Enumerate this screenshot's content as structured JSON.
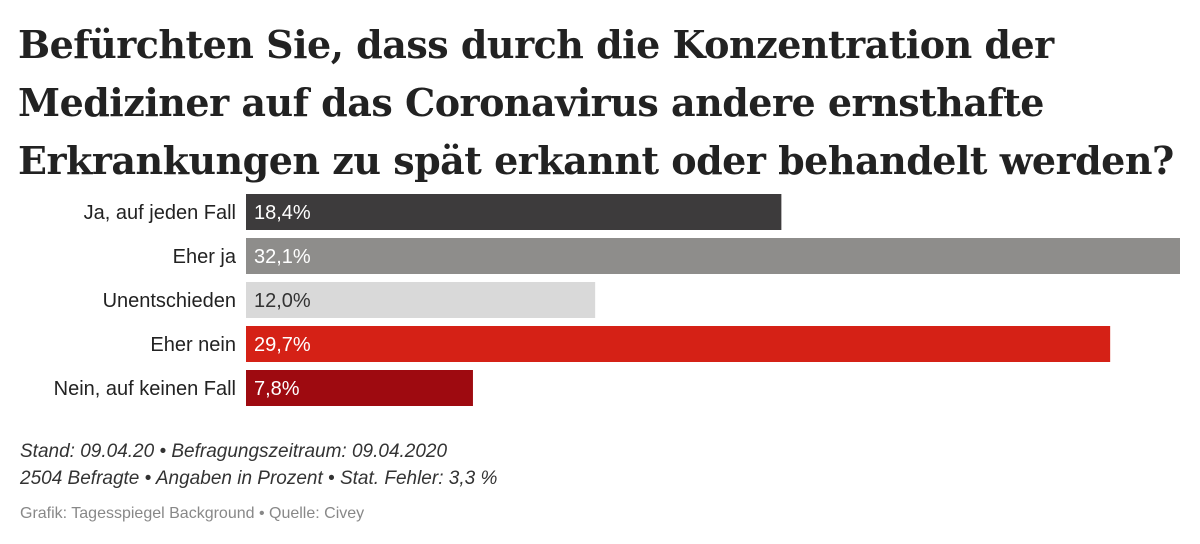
{
  "chart_data": {
    "type": "bar",
    "orientation": "horizontal",
    "title": "Befürchten Sie, dass durch die Konzentration der Mediziner auf das Coronavirus andere ernsthafte Erkrankungen zu spät erkannt oder behandelt werden?",
    "categories": [
      "Ja, auf jeden Fall",
      "Eher ja",
      "Unentschieden",
      "Eher nein",
      "Nein, auf keinen Fall"
    ],
    "values": [
      18.4,
      32.1,
      12.0,
      29.7,
      7.8
    ],
    "value_labels": [
      "18,4%",
      "32,1%",
      "12,0%",
      "29,7%",
      "7,8%"
    ],
    "colors": [
      "#3d3b3c",
      "#8e8d8b",
      "#d9d9d9",
      "#d52116",
      "#9e0a10"
    ],
    "label_colors": [
      "#ffffff",
      "#ffffff",
      "#333333",
      "#ffffff",
      "#ffffff"
    ],
    "xlim": [
      0,
      32.1
    ],
    "grid": false,
    "legend": "none"
  },
  "footer": {
    "line1": "Stand: 09.04.20 • Befragungszeitraum: 09.04.2020",
    "line2": "2504 Befragte • Angaben in Prozent • Stat. Fehler: 3,3 %",
    "credit": "Grafik: Tagesspiegel Background • Quelle: Civey"
  }
}
